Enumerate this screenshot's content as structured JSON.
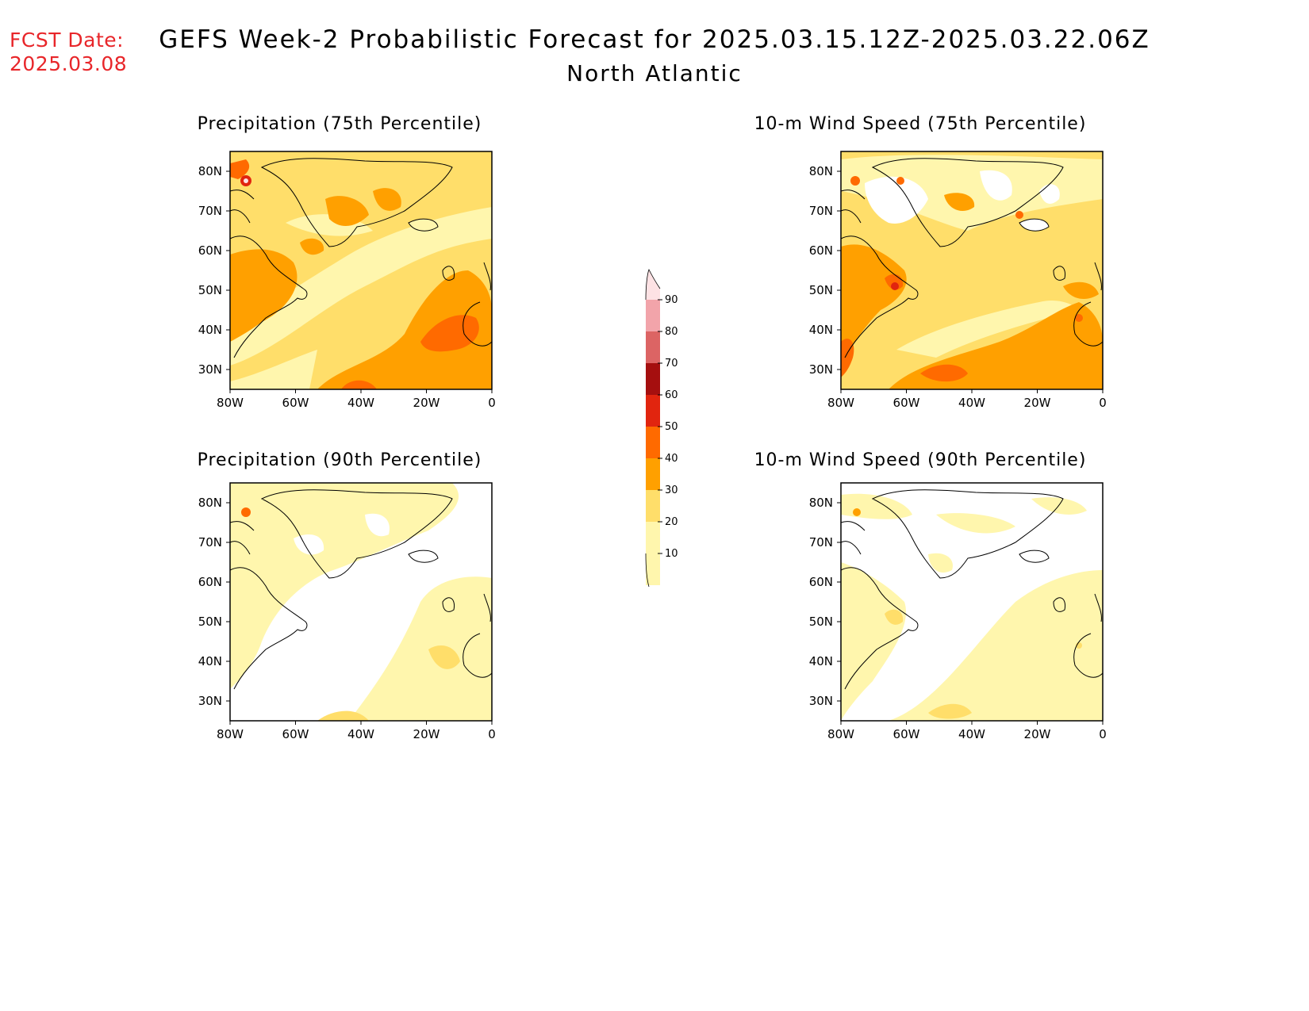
{
  "header": {
    "fcst_label": "FCST Date:",
    "fcst_date": "2025.03.08",
    "title": "GEFS Week-2 Probabilistic Forecast for 2025.03.15.12Z-2025.03.22.06Z",
    "subtitle": "North Atlantic"
  },
  "axes": {
    "lat_labels": [
      "80N",
      "70N",
      "60N",
      "50N",
      "40N",
      "30N"
    ],
    "lon_labels": [
      "80W",
      "60W",
      "40W",
      "20W",
      "0"
    ]
  },
  "panels": [
    {
      "id": "precip75",
      "title": "Precipitation (75th Percentile)"
    },
    {
      "id": "wind75",
      "title": "10-m Wind Speed (75th Percentile)"
    },
    {
      "id": "precip90",
      "title": "Precipitation (90th Percentile)"
    },
    {
      "id": "wind90",
      "title": "10-m Wind Speed (90th Percentile)"
    }
  ],
  "colorbar": {
    "labels": [
      "90",
      "80",
      "70",
      "60",
      "50",
      "40",
      "30",
      "20",
      "10"
    ],
    "colors": [
      "#fde2e4",
      "#f2a4aa",
      "#dc6464",
      "#a50f0f",
      "#e1250f",
      "#ff6a00",
      "#ffa000",
      "#ffde6a",
      "#fff6ad"
    ]
  },
  "palette": {
    "p10": "#fff6ad",
    "p20": "#ffde6a",
    "p30": "#ffa000",
    "p40": "#ff6a00",
    "p50": "#e1250f",
    "p60": "#a50f0f",
    "fcst_color": "#e8262a"
  }
}
